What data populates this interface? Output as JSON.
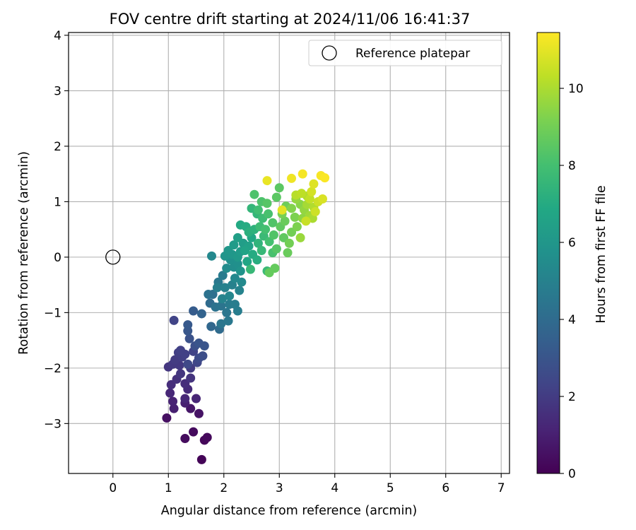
{
  "chart_data": {
    "type": "scatter",
    "title": "FOV centre drift starting at 2024/11/06 16:41:37",
    "xlabel": "Angular distance from reference (arcmin)",
    "ylabel": "Rotation from reference (arcmin)",
    "xlim": [
      -0.8,
      7.15
    ],
    "ylim": [
      -3.9,
      4.05
    ],
    "xticks": [
      0,
      1,
      2,
      3,
      4,
      5,
      6,
      7
    ],
    "yticks": [
      -3,
      -2,
      -1,
      0,
      1,
      2,
      3,
      4
    ],
    "grid": true,
    "legend": {
      "position": "top-right",
      "entries": [
        {
          "label": "Reference platepar",
          "marker": "open-circle",
          "x": 0,
          "y": 0
        }
      ]
    },
    "colorbar": {
      "label": "Hours from first FF file",
      "min": 0,
      "max": 11.45,
      "ticks": [
        0,
        2,
        4,
        6,
        8,
        10
      ],
      "colormap": "viridis"
    },
    "reference_point": {
      "x": 0,
      "y": 0
    },
    "points": [
      [
        1.6,
        -3.65,
        0.1
      ],
      [
        1.65,
        -3.3,
        0.2
      ],
      [
        1.7,
        -3.25,
        0.25
      ],
      [
        1.45,
        -3.15,
        0.3
      ],
      [
        1.3,
        -3.27,
        0.35
      ],
      [
        0.97,
        -2.9,
        0.5
      ],
      [
        1.55,
        -2.82,
        0.6
      ],
      [
        1.4,
        -2.73,
        0.7
      ],
      [
        1.1,
        -2.73,
        1.0
      ],
      [
        1.3,
        -2.63,
        1.0
      ],
      [
        1.08,
        -2.6,
        1.1
      ],
      [
        1.5,
        -2.55,
        1.2
      ],
      [
        1.3,
        -2.55,
        1.3
      ],
      [
        1.03,
        -2.45,
        1.3
      ],
      [
        1.35,
        -2.38,
        1.4
      ],
      [
        1.05,
        -2.3,
        1.5
      ],
      [
        1.3,
        -2.28,
        1.5
      ],
      [
        1.15,
        -2.2,
        1.6
      ],
      [
        1.4,
        -2.18,
        1.7
      ],
      [
        1.22,
        -2.1,
        1.8
      ],
      [
        1.0,
        -1.98,
        1.8
      ],
      [
        1.08,
        -1.93,
        1.9
      ],
      [
        1.2,
        -1.95,
        1.9
      ],
      [
        1.4,
        -2.0,
        2.0
      ],
      [
        1.12,
        -1.85,
        2.0
      ],
      [
        1.25,
        -1.8,
        2.1
      ],
      [
        1.18,
        -1.72,
        2.1
      ],
      [
        1.3,
        -1.75,
        2.2
      ],
      [
        1.22,
        -1.68,
        2.2
      ],
      [
        1.45,
        -1.7,
        2.3
      ],
      [
        1.1,
        -1.14,
        2.3
      ],
      [
        1.52,
        -1.9,
        2.4
      ],
      [
        1.35,
        -1.93,
        2.5
      ],
      [
        1.55,
        -1.82,
        2.6
      ],
      [
        1.62,
        -1.78,
        2.7
      ],
      [
        1.48,
        -1.6,
        2.8
      ],
      [
        1.38,
        -1.47,
        2.9
      ],
      [
        1.55,
        -1.55,
        3.0
      ],
      [
        1.65,
        -1.6,
        3.0
      ],
      [
        1.35,
        -1.33,
        3.1
      ],
      [
        1.35,
        -1.22,
        3.2
      ],
      [
        1.45,
        -0.97,
        3.3
      ],
      [
        1.6,
        -1.02,
        3.6
      ],
      [
        1.77,
        -1.25,
        3.8
      ],
      [
        1.92,
        -1.3,
        4.0
      ],
      [
        1.75,
        -0.83,
        4.0
      ],
      [
        1.8,
        -0.67,
        4.2
      ],
      [
        1.72,
        -0.67,
        4.3
      ],
      [
        1.85,
        -0.9,
        4.3
      ],
      [
        1.95,
        -0.88,
        4.4
      ],
      [
        2.05,
        -1.0,
        4.5
      ],
      [
        1.95,
        -1.2,
        4.5
      ],
      [
        2.08,
        -1.15,
        4.6
      ],
      [
        1.9,
        -0.45,
        4.6
      ],
      [
        1.98,
        -0.33,
        4.7
      ],
      [
        2.1,
        -0.85,
        4.7
      ],
      [
        2.25,
        -0.97,
        4.8
      ],
      [
        2.2,
        -0.85,
        4.8
      ],
      [
        1.88,
        -0.55,
        4.9
      ],
      [
        2.02,
        -0.55,
        5.0
      ],
      [
        2.15,
        -0.5,
        5.0
      ],
      [
        2.28,
        -0.6,
        5.1
      ],
      [
        1.97,
        -0.75,
        5.1
      ],
      [
        2.1,
        -0.7,
        5.2
      ],
      [
        1.78,
        0.02,
        5.3
      ],
      [
        2.2,
        -0.38,
        5.3
      ],
      [
        2.32,
        -0.45,
        5.4
      ],
      [
        2.05,
        -0.2,
        5.5
      ],
      [
        2.18,
        -0.18,
        5.6
      ],
      [
        2.12,
        -0.05,
        5.7
      ],
      [
        2.25,
        -0.12,
        5.7
      ],
      [
        2.3,
        -0.25,
        5.8
      ],
      [
        2.02,
        0.02,
        5.9
      ],
      [
        2.15,
        0.05,
        6.0
      ],
      [
        2.08,
        0.12,
        6.0
      ],
      [
        2.25,
        0.0,
        6.1
      ],
      [
        2.18,
        0.22,
        6.2
      ],
      [
        2.3,
        0.1,
        6.2
      ],
      [
        2.35,
        0.25,
        6.3
      ],
      [
        2.25,
        0.35,
        6.4
      ],
      [
        2.45,
        0.2,
        6.5
      ],
      [
        2.38,
        0.12,
        6.6
      ],
      [
        2.42,
        -0.08,
        6.7
      ],
      [
        2.5,
        0.35,
        6.8
      ],
      [
        2.3,
        0.58,
        6.9
      ],
      [
        2.4,
        0.55,
        7.0
      ],
      [
        2.52,
        0.05,
        7.0
      ],
      [
        2.6,
        -0.05,
        7.1
      ],
      [
        2.45,
        0.45,
        7.2
      ],
      [
        2.55,
        0.5,
        7.3
      ],
      [
        2.62,
        0.25,
        7.4
      ],
      [
        2.5,
        0.88,
        7.5
      ],
      [
        2.6,
        0.78,
        7.5
      ],
      [
        2.48,
        -0.22,
        7.6
      ],
      [
        2.68,
        0.12,
        7.6
      ],
      [
        2.72,
        0.38,
        7.7
      ],
      [
        2.78,
        -0.25,
        7.7
      ],
      [
        2.65,
        0.55,
        7.8
      ],
      [
        2.7,
        0.7,
        7.8
      ],
      [
        2.62,
        0.85,
        7.9
      ],
      [
        2.75,
        0.5,
        8.0
      ],
      [
        2.82,
        0.28,
        8.0
      ],
      [
        2.88,
        0.08,
        8.1
      ],
      [
        2.8,
        0.78,
        8.1
      ],
      [
        2.55,
        1.13,
        8.2
      ],
      [
        2.68,
        1.0,
        8.2
      ],
      [
        2.88,
        0.62,
        8.3
      ],
      [
        2.9,
        0.4,
        8.3
      ],
      [
        2.95,
        0.15,
        8.4
      ],
      [
        2.78,
        0.97,
        8.4
      ],
      [
        2.95,
        1.08,
        8.5
      ],
      [
        3.0,
        1.25,
        8.5
      ],
      [
        3.02,
        0.55,
        8.6
      ],
      [
        3.08,
        0.35,
        8.6
      ],
      [
        2.92,
        -0.2,
        8.7
      ],
      [
        2.82,
        -0.28,
        8.7
      ],
      [
        3.15,
        0.08,
        8.8
      ],
      [
        3.1,
        0.65,
        8.8
      ],
      [
        3.12,
        0.92,
        8.9
      ],
      [
        3.22,
        0.45,
        9.0
      ],
      [
        3.18,
        0.25,
        9.0
      ],
      [
        3.05,
        0.78,
        9.1
      ],
      [
        3.28,
        0.72,
        9.2
      ],
      [
        3.32,
        0.55,
        9.2
      ],
      [
        3.22,
        0.88,
        9.3
      ],
      [
        3.38,
        0.95,
        9.4
      ],
      [
        3.42,
        0.7,
        9.5
      ],
      [
        3.3,
        1.05,
        9.6
      ],
      [
        3.45,
        0.85,
        9.6
      ],
      [
        3.38,
        0.35,
        9.7
      ],
      [
        3.55,
        0.75,
        9.8
      ],
      [
        3.5,
        0.95,
        9.9
      ],
      [
        3.6,
        0.7,
        10.0
      ],
      [
        3.5,
        1.1,
        10.1
      ],
      [
        3.62,
        0.9,
        10.1
      ],
      [
        3.3,
        1.12,
        10.2
      ],
      [
        3.4,
        1.15,
        10.3
      ],
      [
        3.55,
        1.05,
        10.4
      ],
      [
        3.48,
        0.65,
        10.5
      ],
      [
        3.65,
        0.82,
        10.6
      ],
      [
        3.7,
        1.0,
        10.6
      ],
      [
        3.58,
        1.18,
        10.7
      ],
      [
        3.78,
        1.05,
        10.8
      ],
      [
        3.62,
        1.32,
        10.9
      ],
      [
        3.05,
        0.85,
        11.0
      ],
      [
        2.78,
        1.38,
        11.1
      ],
      [
        3.22,
        1.42,
        11.2
      ],
      [
        3.42,
        1.5,
        11.3
      ],
      [
        3.75,
        1.47,
        11.35
      ],
      [
        3.82,
        1.43,
        11.4
      ]
    ]
  }
}
